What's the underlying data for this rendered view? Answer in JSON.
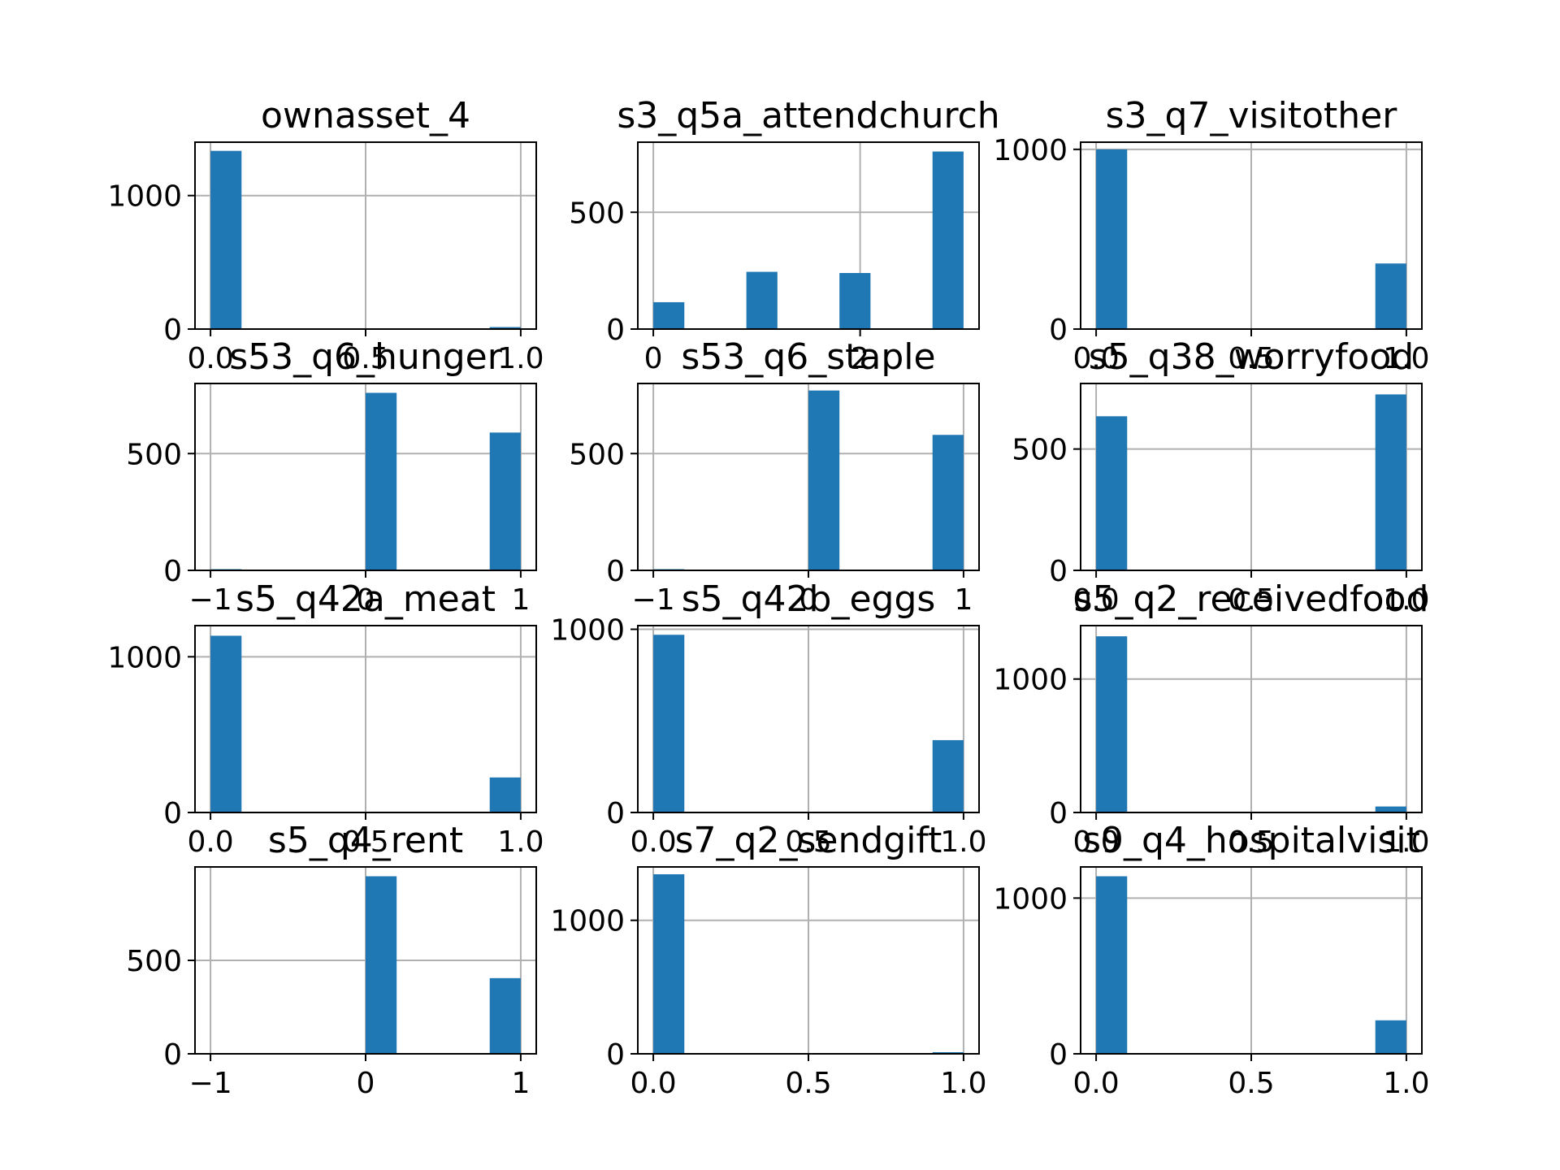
{
  "figure": {
    "bar_color": "#1f77b4",
    "grid_color": "#b0b0b0",
    "axis_color": "#000000"
  },
  "chart_data": [
    {
      "type": "bar",
      "title": "ownasset_4",
      "xlim": [
        -0.05,
        1.05
      ],
      "ylim": [
        0,
        1400
      ],
      "grid": true,
      "xticks": [
        0.0,
        0.5,
        1.0
      ],
      "xtick_labels": [
        "0.0",
        "0.5",
        "1.0"
      ],
      "yticks": [
        0,
        1000
      ],
      "ytick_labels": [
        "0",
        "1000"
      ],
      "bins": [
        [
          0.0,
          0.1
        ],
        [
          0.9,
          1.0
        ]
      ],
      "values": [
        1335,
        15
      ]
    },
    {
      "type": "bar",
      "title": "s3_q5a_attendchurch",
      "xlim": [
        -0.15,
        3.15
      ],
      "ylim": [
        0,
        800
      ],
      "grid": true,
      "xticks": [
        0,
        2
      ],
      "xtick_labels": [
        "0",
        "2"
      ],
      "yticks": [
        0,
        500
      ],
      "ytick_labels": [
        "0",
        "500"
      ],
      "bins": [
        [
          0.0,
          0.3
        ],
        [
          0.9,
          1.2
        ],
        [
          1.8,
          2.1
        ],
        [
          2.7,
          3.0
        ]
      ],
      "values": [
        115,
        245,
        240,
        760
      ]
    },
    {
      "type": "bar",
      "title": "s3_q7_visitother",
      "xlim": [
        -0.05,
        1.05
      ],
      "ylim": [
        0,
        1040
      ],
      "grid": true,
      "xticks": [
        0.0,
        0.5,
        1.0
      ],
      "xtick_labels": [
        "0.0",
        "0.5",
        "1.0"
      ],
      "yticks": [
        0,
        1000
      ],
      "ytick_labels": [
        "0",
        "1000"
      ],
      "bins": [
        [
          0.0,
          0.1
        ],
        [
          0.9,
          1.0
        ]
      ],
      "values": [
        1000,
        365
      ]
    },
    {
      "type": "bar",
      "title": "s53_q6_hunger",
      "xlim": [
        -1.1,
        1.1
      ],
      "ylim": [
        0,
        800
      ],
      "grid": true,
      "xticks": [
        -1,
        0,
        1
      ],
      "xtick_labels": [
        "−1",
        "0",
        "1"
      ],
      "yticks": [
        0,
        500
      ],
      "ytick_labels": [
        "0",
        "500"
      ],
      "bins": [
        [
          -1.0,
          -0.8
        ],
        [
          0.0,
          0.2
        ],
        [
          0.8,
          1.0
        ]
      ],
      "values": [
        5,
        760,
        590
      ]
    },
    {
      "type": "bar",
      "title": "s53_q6_staple",
      "xlim": [
        -1.1,
        1.1
      ],
      "ylim": [
        0,
        800
      ],
      "grid": true,
      "xticks": [
        -1,
        0,
        1
      ],
      "xtick_labels": [
        "−1",
        "0",
        "1"
      ],
      "yticks": [
        0,
        500
      ],
      "ytick_labels": [
        "0",
        "500"
      ],
      "bins": [
        [
          -1.0,
          -0.8
        ],
        [
          0.0,
          0.2
        ],
        [
          0.8,
          1.0
        ]
      ],
      "values": [
        5,
        770,
        580
      ]
    },
    {
      "type": "bar",
      "title": "s5_q38_worryfood",
      "xlim": [
        -0.05,
        1.05
      ],
      "ylim": [
        0,
        770
      ],
      "grid": true,
      "xticks": [
        0.0,
        0.5,
        1.0
      ],
      "xtick_labels": [
        "0.0",
        "0.5",
        "1.0"
      ],
      "yticks": [
        0,
        500
      ],
      "ytick_labels": [
        "0",
        "500"
      ],
      "bins": [
        [
          0.0,
          0.1
        ],
        [
          0.9,
          1.0
        ]
      ],
      "values": [
        635,
        725
      ]
    },
    {
      "type": "bar",
      "title": "s5_q42a_meat",
      "xlim": [
        -0.05,
        1.05
      ],
      "ylim": [
        0,
        1200
      ],
      "grid": true,
      "xticks": [
        0.0,
        0.5,
        1.0
      ],
      "xtick_labels": [
        "0.0",
        "0.5",
        "1.0"
      ],
      "yticks": [
        0,
        1000
      ],
      "ytick_labels": [
        "0",
        "1000"
      ],
      "bins": [
        [
          0.0,
          0.1
        ],
        [
          0.9,
          1.0
        ]
      ],
      "values": [
        1135,
        225
      ]
    },
    {
      "type": "bar",
      "title": "s5_q42b_eggs",
      "xlim": [
        -0.05,
        1.05
      ],
      "ylim": [
        0,
        1020
      ],
      "grid": true,
      "xticks": [
        0.0,
        0.5,
        1.0
      ],
      "xtick_labels": [
        "0.0",
        "0.5",
        "1.0"
      ],
      "yticks": [
        0,
        1000
      ],
      "ytick_labels": [
        "0",
        "1000"
      ],
      "bins": [
        [
          0.0,
          0.1
        ],
        [
          0.9,
          1.0
        ]
      ],
      "values": [
        970,
        395
      ]
    },
    {
      "type": "bar",
      "title": "s5_q2_receivedfood",
      "xlim": [
        -0.05,
        1.05
      ],
      "ylim": [
        0,
        1400
      ],
      "grid": true,
      "xticks": [
        0.0,
        0.5,
        1.0
      ],
      "xtick_labels": [
        "0.0",
        "0.5",
        "1.0"
      ],
      "yticks": [
        0,
        1000
      ],
      "ytick_labels": [
        "0",
        "1000"
      ],
      "bins": [
        [
          0.0,
          0.1
        ],
        [
          0.9,
          1.0
        ]
      ],
      "values": [
        1320,
        45
      ]
    },
    {
      "type": "bar",
      "title": "s5_q4_rent",
      "xlim": [
        -1.1,
        1.1
      ],
      "ylim": [
        0,
        1000
      ],
      "grid": true,
      "xticks": [
        -1,
        0,
        1
      ],
      "xtick_labels": [
        "−1",
        "0",
        "1"
      ],
      "yticks": [
        0,
        500
      ],
      "ytick_labels": [
        "0",
        "500"
      ],
      "bins": [
        [
          -1.0,
          -0.8
        ],
        [
          0.0,
          0.2
        ],
        [
          0.8,
          1.0
        ]
      ],
      "values": [
        0,
        950,
        405
      ]
    },
    {
      "type": "bar",
      "title": "s7_q2_sendgift",
      "xlim": [
        -0.05,
        1.05
      ],
      "ylim": [
        0,
        1400
      ],
      "grid": true,
      "xticks": [
        0.0,
        0.5,
        1.0
      ],
      "xtick_labels": [
        "0.0",
        "0.5",
        "1.0"
      ],
      "yticks": [
        0,
        1000
      ],
      "ytick_labels": [
        "0",
        "1000"
      ],
      "bins": [
        [
          0.0,
          0.1
        ],
        [
          0.9,
          1.0
        ]
      ],
      "values": [
        1345,
        12
      ]
    },
    {
      "type": "bar",
      "title": "s9_q4_hospitalvisit",
      "xlim": [
        -0.05,
        1.05
      ],
      "ylim": [
        0,
        1200
      ],
      "grid": true,
      "xticks": [
        0.0,
        0.5,
        1.0
      ],
      "xtick_labels": [
        "0.0",
        "0.5",
        "1.0"
      ],
      "yticks": [
        0,
        1000
      ],
      "ytick_labels": [
        "0",
        "1000"
      ],
      "bins": [
        [
          0.0,
          0.1
        ],
        [
          0.9,
          1.0
        ]
      ],
      "values": [
        1140,
        215
      ]
    }
  ]
}
